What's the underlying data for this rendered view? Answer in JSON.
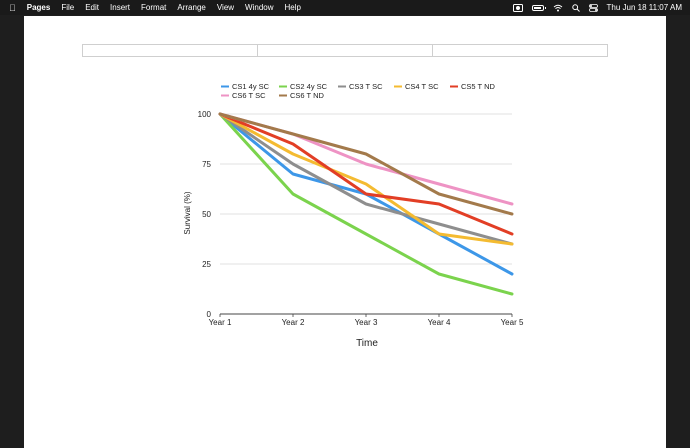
{
  "menubar": {
    "app_name": "Pages",
    "items": [
      "File",
      "Edit",
      "Insert",
      "Format",
      "Arrange",
      "View",
      "Window",
      "Help"
    ],
    "clock": "Thu Jun 18  11:07 AM"
  },
  "chart_data": {
    "type": "line",
    "x": [
      "Year 1",
      "Year 2",
      "Year 3",
      "Year 4",
      "Year 5"
    ],
    "xlabel": "Time",
    "ylabel": "Survival (%)",
    "ylim": [
      0,
      100
    ],
    "yticks": [
      0,
      25,
      50,
      75,
      100
    ],
    "grid": true,
    "legend": "top",
    "series": [
      {
        "name": "CS1 4y SC",
        "color": "#3d97e8",
        "values": [
          100,
          70,
          60,
          40,
          20
        ]
      },
      {
        "name": "CS2 4y SC",
        "color": "#7bd34d",
        "values": [
          100,
          60,
          40,
          20,
          10
        ]
      },
      {
        "name": "CS3 T SC",
        "color": "#8e8e8e",
        "values": [
          100,
          75,
          55,
          45,
          35
        ]
      },
      {
        "name": "CS4 T SC",
        "color": "#f4bb31",
        "values": [
          100,
          80,
          65,
          40,
          35
        ]
      },
      {
        "name": "CS5 T ND",
        "color": "#e23e25",
        "values": [
          100,
          85,
          60,
          55,
          40
        ]
      },
      {
        "name": "CS6 T SC",
        "color": "#ee93c4",
        "values": [
          100,
          90,
          75,
          65,
          55
        ]
      },
      {
        "name": "CS6 T ND",
        "color": "#a37a4b",
        "values": [
          100,
          90,
          80,
          60,
          50
        ]
      }
    ]
  }
}
